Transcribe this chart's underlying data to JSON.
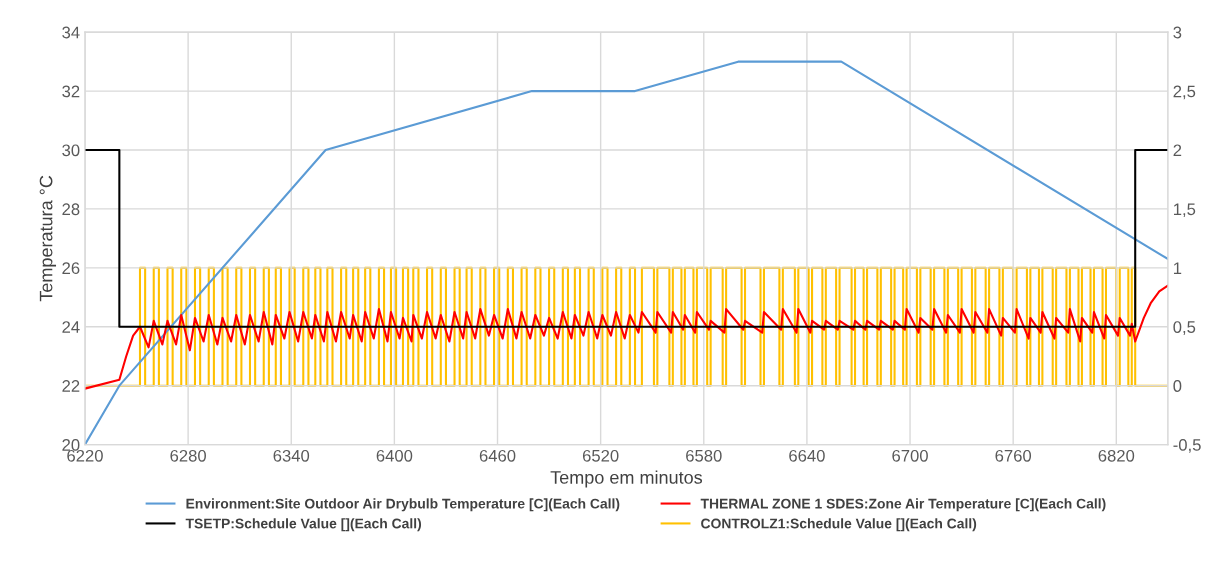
{
  "chart_data": {
    "type": "line",
    "xlabel": "Tempo em minutos",
    "ylabel": "Temperatura °C",
    "xlim": [
      6220,
      6850
    ],
    "xticks": [
      6220,
      6280,
      6340,
      6400,
      6460,
      6520,
      6580,
      6640,
      6700,
      6760,
      6820
    ],
    "ylim": [
      20,
      34
    ],
    "yticks": [
      20,
      22,
      24,
      26,
      28,
      30,
      32,
      34
    ],
    "y2lim": [
      -0.5,
      3
    ],
    "y2ticks": [
      {
        "value": -0.5,
        "label": "-0,5"
      },
      0,
      {
        "value": 0.5,
        "label": "0,5"
      },
      1,
      {
        "value": 1.5,
        "label": "1,5"
      },
      2,
      {
        "value": 2.5,
        "label": "2,5"
      },
      3
    ],
    "grid": true,
    "legend": "bottom",
    "series": [
      {
        "name": "Environment:Site Outdoor Air Drybulb Temperature [C](Each Call)",
        "color": "#5b9bd5",
        "x": [
          6220,
          6240,
          6360,
          6480,
          6540,
          6600,
          6660,
          6850
        ],
        "values": [
          20,
          22,
          30,
          32,
          32,
          33,
          33,
          26.3
        ]
      },
      {
        "name": "THERMAL ZONE 1 SDES:Zone Air Temperature [C](Each Call)",
        "color": "#ff0000",
        "x": [
          6220,
          6240,
          6244,
          6248,
          6252,
          6257,
          6260,
          6265,
          6268,
          6273,
          6276,
          6281,
          6284,
          6289,
          6292,
          6297,
          6300,
          6305,
          6308,
          6313,
          6316,
          6321,
          6324,
          6329,
          6331,
          6336,
          6339,
          6344,
          6347,
          6352,
          6354,
          6359,
          6361,
          6366,
          6369,
          6374,
          6376,
          6381,
          6383,
          6388,
          6391,
          6396,
          6398,
          6403,
          6405,
          6410,
          6411,
          6416,
          6419,
          6424,
          6427,
          6432,
          6435,
          6440,
          6442,
          6447,
          6450,
          6455,
          6458,
          6463,
          6466,
          6471,
          6474,
          6479,
          6482,
          6487,
          6490,
          6495,
          6498,
          6503,
          6505,
          6510,
          6513,
          6518,
          6521,
          6526,
          6529,
          6534,
          6537,
          6542,
          6544,
          6552,
          6553,
          6561,
          6562,
          6568,
          6569,
          6575,
          6576,
          6583,
          6584,
          6592,
          6593,
          6603,
          6604,
          6614,
          6615,
          6625,
          6626,
          6634,
          6635,
          6642,
          6643,
          6650,
          6651,
          6658,
          6659,
          6667,
          6668,
          6674,
          6675,
          6682,
          6683,
          6690,
          6691,
          6697,
          6698,
          6705,
          6706,
          6713,
          6714,
          6721,
          6722,
          6729,
          6730,
          6737,
          6738,
          6745,
          6746,
          6753,
          6754,
          6761,
          6762,
          6769,
          6770,
          6776,
          6777,
          6784,
          6785,
          6792,
          6793,
          6799,
          6800,
          6806,
          6807,
          6813,
          6814,
          6821,
          6822,
          6828,
          6829,
          6831,
          6836,
          6840,
          6845,
          6850
        ],
        "values": [
          21.9,
          22.2,
          23.0,
          23.7,
          24.0,
          23.3,
          24.2,
          23.4,
          24.2,
          23.4,
          24.4,
          23.2,
          24.3,
          23.5,
          24.4,
          23.4,
          24.3,
          23.5,
          24.4,
          23.4,
          24.4,
          23.5,
          24.5,
          23.4,
          24.4,
          23.6,
          24.5,
          23.5,
          24.5,
          23.6,
          24.4,
          23.5,
          24.5,
          23.5,
          24.5,
          23.6,
          24.4,
          23.5,
          24.5,
          23.6,
          24.6,
          23.5,
          24.5,
          23.6,
          24.3,
          23.5,
          24.4,
          23.6,
          24.5,
          23.6,
          24.4,
          23.5,
          24.5,
          23.6,
          24.5,
          23.6,
          24.6,
          23.7,
          24.4,
          23.6,
          24.6,
          23.6,
          24.5,
          23.6,
          24.4,
          23.7,
          24.3,
          23.6,
          24.5,
          23.6,
          24.4,
          23.7,
          24.5,
          23.6,
          24.4,
          23.7,
          24.5,
          23.6,
          24.4,
          23.8,
          24.5,
          23.8,
          24.5,
          23.8,
          24.5,
          23.9,
          24.4,
          23.8,
          24.5,
          23.9,
          24.2,
          23.8,
          24.6,
          23.9,
          24.2,
          23.8,
          24.5,
          23.9,
          24.6,
          23.8,
          24.6,
          23.8,
          24.2,
          23.9,
          24.2,
          23.9,
          24.2,
          23.9,
          24.2,
          23.9,
          24.2,
          23.9,
          24.2,
          23.9,
          24.2,
          23.9,
          24.6,
          23.8,
          24.3,
          23.9,
          24.6,
          23.8,
          24.4,
          23.8,
          24.6,
          23.8,
          24.5,
          23.8,
          24.6,
          23.7,
          24.3,
          23.8,
          24.6,
          23.6,
          24.3,
          23.8,
          24.5,
          23.6,
          24.3,
          23.8,
          24.6,
          23.5,
          24.3,
          23.8,
          24.5,
          23.6,
          24.4,
          23.7,
          24.3,
          23.7,
          24.1,
          23.5,
          24.3,
          24.8,
          25.2,
          25.4
        ]
      },
      {
        "name": "TSETP:Schedule Value [](Each Call)",
        "color": "#000000",
        "x": [
          6220,
          6240,
          6240,
          6831,
          6831,
          6850
        ],
        "values": [
          30,
          30,
          24,
          24,
          30,
          30
        ]
      },
      {
        "name": "CONTROLZ1:Schedule Value [](Each Call)",
        "color": "#ffc000",
        "type": "step",
        "axis": "y2",
        "x": [
          6220,
          6252,
          6255,
          6260,
          6263,
          6268,
          6271,
          6276,
          6279,
          6284,
          6287,
          6292,
          6295,
          6300,
          6303,
          6308,
          6311,
          6316,
          6319,
          6324,
          6327,
          6331,
          6334,
          6339,
          6342,
          6347,
          6350,
          6354,
          6357,
          6361,
          6364,
          6369,
          6372,
          6376,
          6379,
          6383,
          6386,
          6391,
          6394,
          6398,
          6401,
          6405,
          6408,
          6411,
          6414,
          6419,
          6422,
          6427,
          6430,
          6435,
          6438,
          6442,
          6445,
          6450,
          6453,
          6458,
          6461,
          6466,
          6469,
          6474,
          6477,
          6482,
          6485,
          6490,
          6493,
          6498,
          6501,
          6505,
          6508,
          6513,
          6516,
          6521,
          6524,
          6529,
          6532,
          6537,
          6540,
          6544,
          6551,
          6553,
          6560,
          6562,
          6567,
          6569,
          6574,
          6576,
          6582,
          6584,
          6591,
          6593,
          6602,
          6604,
          6613,
          6615,
          6624,
          6626,
          6633,
          6635,
          6641,
          6643,
          6649,
          6651,
          6657,
          6659,
          6666,
          6668,
          6673,
          6675,
          6681,
          6683,
          6689,
          6691,
          6696,
          6698,
          6704,
          6706,
          6712,
          6714,
          6720,
          6722,
          6728,
          6730,
          6736,
          6738,
          6744,
          6746,
          6752,
          6754,
          6760,
          6762,
          6768,
          6770,
          6775,
          6777,
          6783,
          6785,
          6791,
          6793,
          6798,
          6800,
          6805,
          6807,
          6812,
          6814,
          6820,
          6822,
          6827,
          6829,
          6831,
          6850
        ],
        "values": [
          0,
          1,
          0,
          1,
          0,
          1,
          0,
          1,
          0,
          1,
          0,
          1,
          0,
          1,
          0,
          1,
          0,
          1,
          0,
          1,
          0,
          1,
          0,
          1,
          0,
          1,
          0,
          1,
          0,
          1,
          0,
          1,
          0,
          1,
          0,
          1,
          0,
          1,
          0,
          1,
          0,
          1,
          0,
          1,
          0,
          1,
          0,
          1,
          0,
          1,
          0,
          1,
          0,
          1,
          0,
          1,
          0,
          1,
          0,
          1,
          0,
          1,
          0,
          1,
          0,
          1,
          0,
          1,
          0,
          1,
          0,
          1,
          0,
          1,
          0,
          1,
          0,
          1,
          0,
          1,
          0,
          1,
          0,
          1,
          0,
          1,
          0,
          1,
          0,
          1,
          0,
          1,
          0,
          1,
          0,
          1,
          0,
          1,
          0,
          1,
          0,
          1,
          0,
          1,
          0,
          1,
          0,
          1,
          0,
          1,
          0,
          1,
          0,
          1,
          0,
          1,
          0,
          1,
          0,
          1,
          0,
          1,
          0,
          1,
          0,
          1,
          0,
          1,
          0,
          1,
          0,
          1,
          0,
          1,
          0,
          1,
          0,
          1,
          0,
          1,
          0,
          1,
          0,
          1,
          0,
          1,
          0,
          1,
          0,
          0
        ]
      }
    ]
  }
}
